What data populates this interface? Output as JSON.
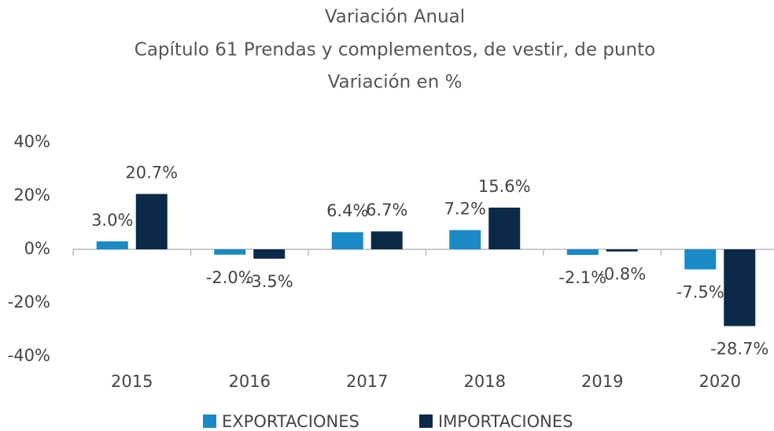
{
  "chart_data": {
    "type": "bar",
    "title": "Variación Anual",
    "subtitle": "Capítulo 61 Prendas y complementos, de vestir, de punto",
    "y_label": "Variación en %",
    "categories": [
      "2015",
      "2016",
      "2017",
      "2018",
      "2019",
      "2020"
    ],
    "series": [
      {
        "name": "EXPORTACIONES",
        "color": "#1a8ac6",
        "values": [
          3.0,
          -2.0,
          6.4,
          7.2,
          -2.1,
          -7.5
        ],
        "value_labels": [
          "3.0%",
          "-2.0%",
          "6.4%",
          "7.2%",
          "-2.1%",
          "-7.5%"
        ]
      },
      {
        "name": "IMPORTACIONES",
        "color": "#0b2a4a",
        "values": [
          20.7,
          -3.5,
          6.7,
          15.6,
          -0.8,
          -28.7
        ],
        "value_labels": [
          "20.7%",
          "-3.5%",
          "6.7%",
          "15.6%",
          "-0.8%",
          "-28.7%"
        ]
      }
    ],
    "ylim": [
      -40,
      40
    ],
    "yticks": [
      {
        "value": 40,
        "label": "40%"
      },
      {
        "value": 20,
        "label": "20%"
      },
      {
        "value": 0,
        "label": "0%"
      },
      {
        "value": -20,
        "label": "-20%"
      },
      {
        "value": -40,
        "label": "-40%"
      }
    ],
    "grid": false,
    "legend": "bottom"
  }
}
